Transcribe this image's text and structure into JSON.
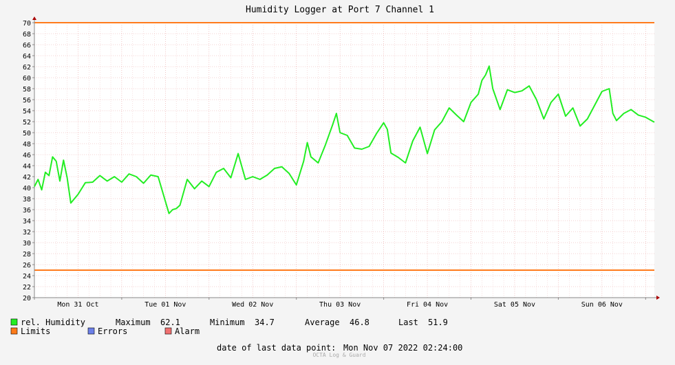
{
  "chart_data": {
    "type": "line",
    "title": "Humidity Logger at Port 7 Channel 1",
    "ylim": [
      20,
      70
    ],
    "yticks": [
      20,
      22,
      24,
      26,
      28,
      30,
      32,
      34,
      36,
      38,
      40,
      42,
      44,
      46,
      48,
      50,
      52,
      54,
      56,
      58,
      60,
      62,
      64,
      66,
      68,
      70
    ],
    "xlim": [
      "2022-10-31T00:00",
      "2022-11-07T02:24"
    ],
    "xtick_labels": [
      {
        "label": "Mon 31 Oct",
        "date": "2022-10-31T12:00"
      },
      {
        "label": "Tue 01 Nov",
        "date": "2022-11-01T12:00"
      },
      {
        "label": "Wed 02 Nov",
        "date": "2022-11-02T12:00"
      },
      {
        "label": "Thu 03 Nov",
        "date": "2022-11-03T12:00"
      },
      {
        "label": "Fri 04 Nov",
        "date": "2022-11-04T12:00"
      },
      {
        "label": "Sat 05 Nov",
        "date": "2022-11-05T12:00"
      },
      {
        "label": "Sun 06 Nov",
        "date": "2022-11-06T12:00"
      }
    ],
    "grid": true,
    "limits": [
      25,
      70
    ],
    "series": [
      {
        "name": "rel. Humidity",
        "color": "#22ee22",
        "x": [
          "2022-10-31T00:00",
          "2022-10-31T01:00",
          "2022-10-31T02:00",
          "2022-10-31T03:00",
          "2022-10-31T04:00",
          "2022-10-31T05:00",
          "2022-10-31T06:00",
          "2022-10-31T07:00",
          "2022-10-31T08:00",
          "2022-10-31T09:00",
          "2022-10-31T10:00",
          "2022-10-31T12:00",
          "2022-10-31T14:00",
          "2022-10-31T16:00",
          "2022-10-31T18:00",
          "2022-10-31T20:00",
          "2022-10-31T22:00",
          "2022-11-01T00:00",
          "2022-11-01T02:00",
          "2022-11-01T04:00",
          "2022-11-01T06:00",
          "2022-11-01T08:00",
          "2022-11-01T10:00",
          "2022-11-01T12:00",
          "2022-11-01T13:00",
          "2022-11-01T14:00",
          "2022-11-01T15:00",
          "2022-11-01T16:00",
          "2022-11-01T18:00",
          "2022-11-01T20:00",
          "2022-11-01T22:00",
          "2022-11-02T00:00",
          "2022-11-02T02:00",
          "2022-11-02T04:00",
          "2022-11-02T06:00",
          "2022-11-02T08:00",
          "2022-11-02T10:00",
          "2022-11-02T12:00",
          "2022-11-02T14:00",
          "2022-11-02T16:00",
          "2022-11-02T18:00",
          "2022-11-02T20:00",
          "2022-11-02T22:00",
          "2022-11-03T00:00",
          "2022-11-03T02:00",
          "2022-11-03T03:00",
          "2022-11-03T04:00",
          "2022-11-03T06:00",
          "2022-11-03T08:00",
          "2022-11-03T10:00",
          "2022-11-03T11:00",
          "2022-11-03T12:00",
          "2022-11-03T14:00",
          "2022-11-03T16:00",
          "2022-11-03T18:00",
          "2022-11-03T20:00",
          "2022-11-03T22:00",
          "2022-11-04T00:00",
          "2022-11-04T01:00",
          "2022-11-04T02:00",
          "2022-11-04T04:00",
          "2022-11-04T06:00",
          "2022-11-04T08:00",
          "2022-11-04T10:00",
          "2022-11-04T12:00",
          "2022-11-04T14:00",
          "2022-11-04T16:00",
          "2022-11-04T18:00",
          "2022-11-04T20:00",
          "2022-11-04T22:00",
          "2022-11-05T00:00",
          "2022-11-05T02:00",
          "2022-11-05T03:00",
          "2022-11-05T04:00",
          "2022-11-05T05:00",
          "2022-11-05T06:00",
          "2022-11-05T08:00",
          "2022-11-05T10:00",
          "2022-11-05T12:00",
          "2022-11-05T14:00",
          "2022-11-05T16:00",
          "2022-11-05T18:00",
          "2022-11-05T20:00",
          "2022-11-05T22:00",
          "2022-11-06T00:00",
          "2022-11-06T02:00",
          "2022-11-06T04:00",
          "2022-11-06T06:00",
          "2022-11-06T08:00",
          "2022-11-06T10:00",
          "2022-11-06T12:00",
          "2022-11-06T14:00",
          "2022-11-06T15:00",
          "2022-11-06T16:00",
          "2022-11-06T18:00",
          "2022-11-06T20:00",
          "2022-11-06T22:00",
          "2022-11-07T00:00",
          "2022-11-07T02:24"
        ],
        "y": [
          40.2,
          41.5,
          39.6,
          42.8,
          42.2,
          45.6,
          44.8,
          41.2,
          45.0,
          41.8,
          37.2,
          38.8,
          40.9,
          41.0,
          42.2,
          41.2,
          42.0,
          41.0,
          42.5,
          42.0,
          40.8,
          42.3,
          42.0,
          37.5,
          35.3,
          36.0,
          36.2,
          36.8,
          41.5,
          39.8,
          41.2,
          40.2,
          42.8,
          43.5,
          41.8,
          46.2,
          41.5,
          42.0,
          41.5,
          42.3,
          43.5,
          43.8,
          42.6,
          40.5,
          44.8,
          48.2,
          45.6,
          44.5,
          47.8,
          51.5,
          53.5,
          50.0,
          49.5,
          47.2,
          47.0,
          47.5,
          49.8,
          51.8,
          50.6,
          46.3,
          45.5,
          44.5,
          48.5,
          51.0,
          46.2,
          50.5,
          52.0,
          54.5,
          53.2,
          52.0,
          55.5,
          57.0,
          59.5,
          60.5,
          62.1,
          58.0,
          54.2,
          57.8,
          57.3,
          57.6,
          58.5,
          56.0,
          52.5,
          55.5,
          57.0,
          53.0,
          54.5,
          51.2,
          52.5,
          55.0,
          57.5,
          58.0,
          53.5,
          52.2,
          53.5,
          54.2,
          53.2,
          52.8,
          51.9
        ]
      }
    ]
  },
  "legend": {
    "series_label": "rel. Humidity",
    "maximum_label": "Maximum",
    "maximum_value": "62.1",
    "minimum_label": "Minimum",
    "minimum_value": "34.7",
    "average_label": "Average",
    "average_value": "46.8",
    "last_label": "Last",
    "last_value": "51.9",
    "limits_label": "Limits",
    "errors_label": "Errors",
    "alarm_label": "Alarm",
    "series_color": "#22ee22",
    "limits_color": "#ff7a1a",
    "errors_color": "#6b7fe8",
    "alarm_color": "#f07070"
  },
  "footer": {
    "last_point_label": "date of last data point:",
    "last_point_value": "Mon Nov 07 2022 02:24:00",
    "watermark": "OCTA Log & Guard"
  }
}
